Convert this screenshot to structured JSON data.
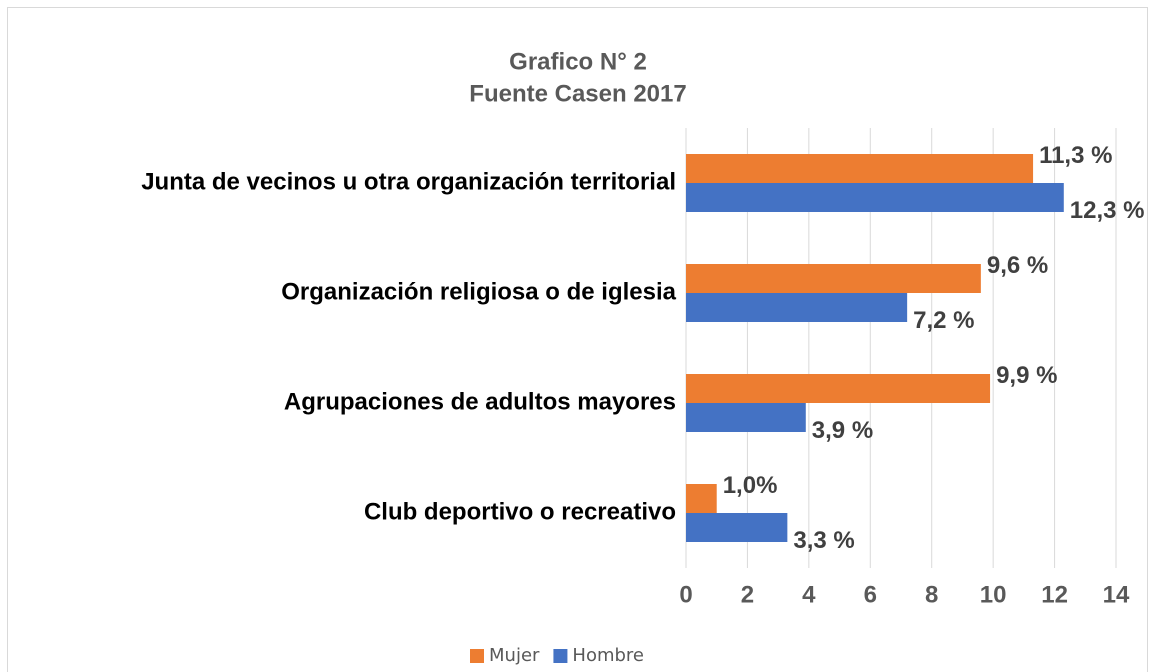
{
  "chart_data": {
    "type": "bar",
    "orientation": "horizontal",
    "title": "Grafico N° 2",
    "subtitle": "Fuente Casen 2017",
    "categories": [
      "Junta de vecinos u otra organización territorial",
      "Organización religiosa o de iglesia",
      "Agrupaciones de adultos mayores",
      "Club deportivo o recreativo"
    ],
    "series": [
      {
        "name": "Mujer",
        "color": "#ed7d31",
        "values": [
          11.3,
          9.6,
          9.9,
          1.0
        ],
        "value_labels": [
          "11,3 %",
          "9,6 %",
          "9,9 %",
          "1,0%"
        ]
      },
      {
        "name": "Hombre",
        "color": "#4472c4",
        "values": [
          12.3,
          7.2,
          3.9,
          3.3
        ],
        "value_labels": [
          "12,3 %",
          "7,2 %",
          "3,9 %",
          "3,3 %"
        ]
      }
    ],
    "xlim": [
      0,
      14
    ],
    "xticks": [
      0,
      2,
      4,
      6,
      8,
      10,
      12,
      14
    ],
    "grid": true,
    "legend": "bottom"
  }
}
